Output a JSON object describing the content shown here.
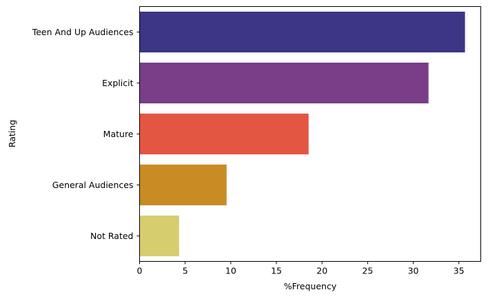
{
  "chart_data": {
    "type": "bar",
    "orientation": "horizontal",
    "title": "",
    "xlabel": "%Frequency",
    "ylabel": "Rating",
    "categories": [
      "Teen And Up Audiences",
      "Explicit",
      "Mature",
      "General Audiences",
      "Not Rated"
    ],
    "values": [
      35.67,
      31.67,
      18.53,
      9.54,
      4.33
    ],
    "colors": [
      "#3d3585",
      "#7a3d88",
      "#e35642",
      "#c98c24",
      "#d6cd6f"
    ],
    "xlim": [
      0,
      37.4
    ],
    "xticks": [
      0,
      5,
      10,
      15,
      20,
      25,
      30,
      35
    ],
    "xtick_labels": [
      "0",
      "5",
      "10",
      "15",
      "20",
      "25",
      "30",
      "35"
    ],
    "grid": false,
    "legend": "none"
  }
}
